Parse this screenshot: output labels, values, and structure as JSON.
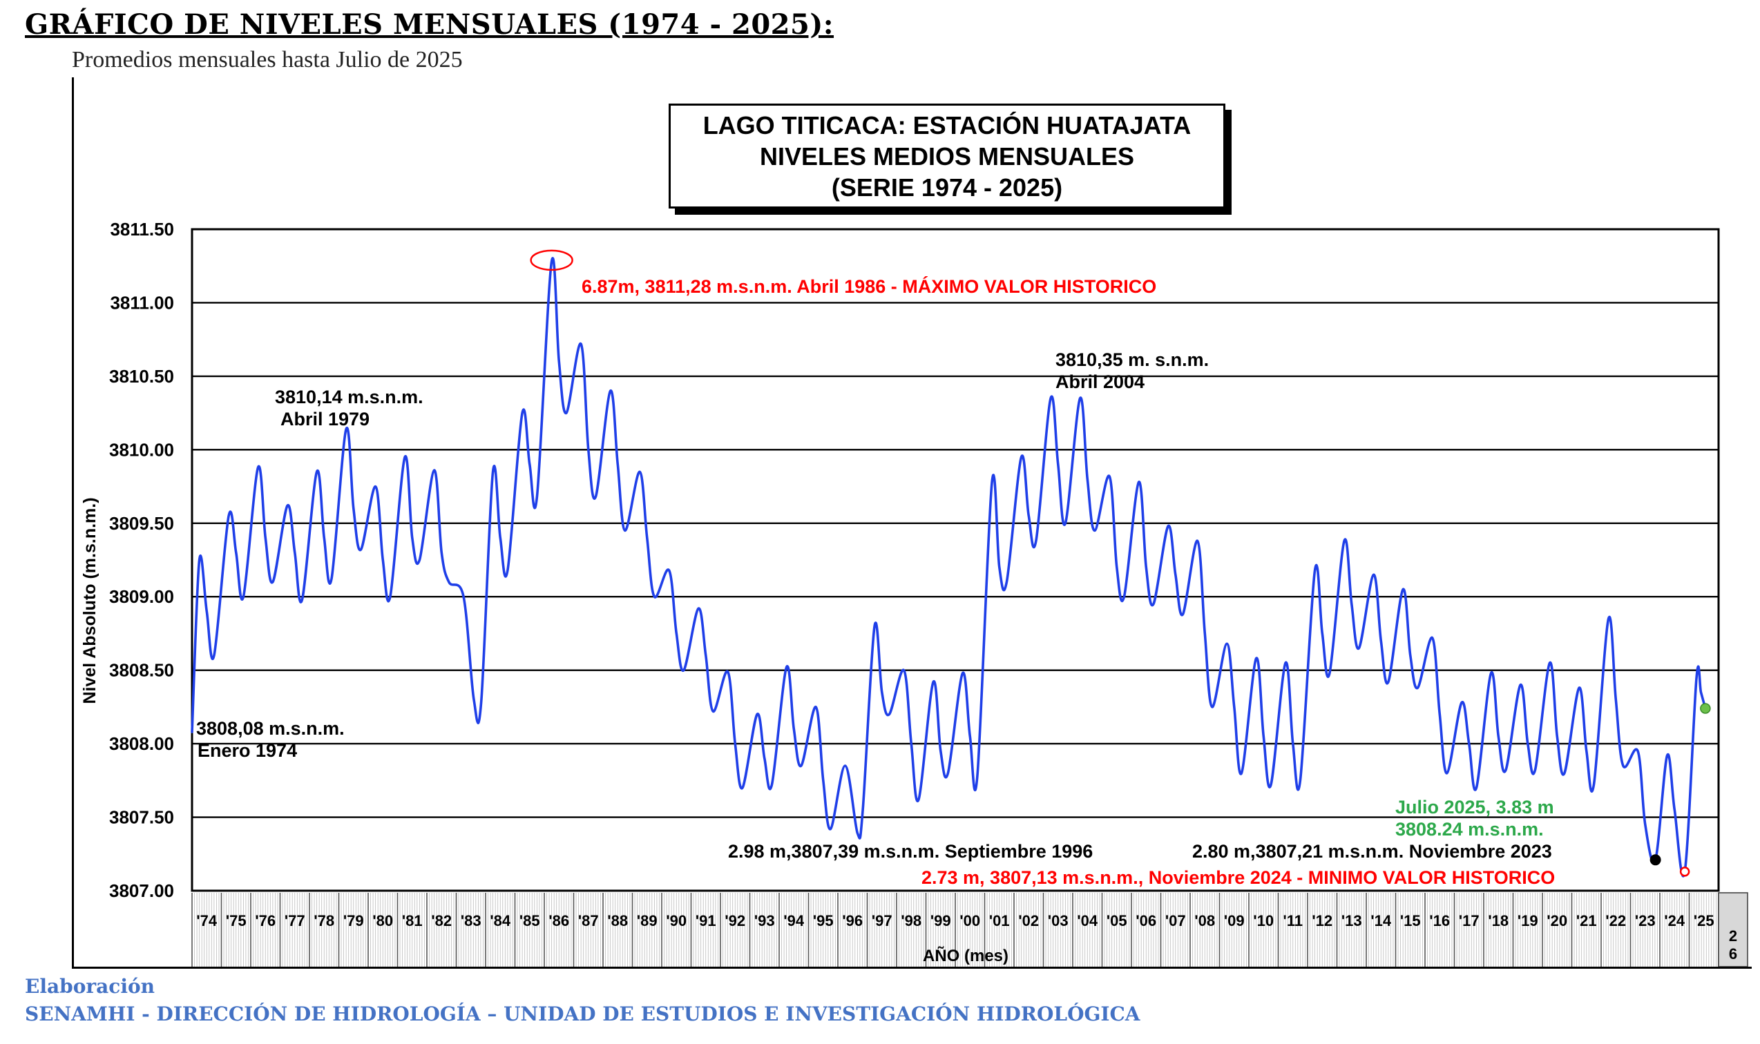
{
  "page": {
    "title": "GRÁFICO DE NIVELES MENSUALES (1974 - 2025):",
    "subtitle": "Promedios mensuales hasta Julio de 2025",
    "credit_label": "Elaboración",
    "credit_org": "SENAMHI - DIRECCIÓN DE HIDROLOGÍA – UNIDAD DE ESTUDIOS E INVESTIGACIÓN HIDROLÓGICA"
  },
  "colors": {
    "series": "#1f3fe8",
    "max_annotation": "#ff0000",
    "min_annotation": "#ff0000",
    "current_annotation": "#2ca84a",
    "current_point": "#6cc04a",
    "min_2023_point": "#000000",
    "grid": "#000000",
    "credit": "#4472c4"
  },
  "chart_data": {
    "type": "line",
    "title_lines": [
      "LAGO TITICACA: ESTACIÓN HUATAJATA",
      "NIVELES MEDIOS MENSUALES",
      "(SERIE 1974 - 2025)"
    ],
    "xlabel": "AÑO (mes)",
    "ylabel": "Nivel Absoluto (m.s.n.m.)",
    "ylim": [
      3807.0,
      3811.5
    ],
    "y_ticks": [
      "3807.00",
      "3807.50",
      "3808.00",
      "3808.50",
      "3809.00",
      "3809.50",
      "3810.00",
      "3810.50",
      "3811.00",
      "3811.50"
    ],
    "x_ticks": [
      "'74",
      "'75",
      "'76",
      "'77",
      "'78",
      "'79",
      "'80",
      "'81",
      "'82",
      "'83",
      "'84",
      "'85",
      "'86",
      "'87",
      "'88",
      "'89",
      "'90",
      "'91",
      "'92",
      "'93",
      "'94",
      "'95",
      "'96",
      "'97",
      "'98",
      "'99",
      "'00",
      "'01",
      "'02",
      "'03",
      "'04",
      "'05",
      "'06",
      "'07",
      "'08",
      "'09",
      "'10",
      "'11",
      "'12",
      "'13",
      "'14",
      "'15",
      "'16",
      "'17",
      "'18",
      "'19",
      "'20",
      "'21",
      "'22",
      "'23",
      "'24",
      "'25"
    ],
    "extra_tick": "26",
    "grid": true,
    "series_name": "Nivel medio mensual (m.s.n.m.)",
    "x_start_year": 1974.0,
    "x_end_year": 2026.0,
    "x": [
      1974.0,
      1974.25,
      1974.5,
      1974.75,
      1975.25,
      1975.5,
      1975.75,
      1976.25,
      1976.5,
      1976.75,
      1977.25,
      1977.5,
      1977.75,
      1978.25,
      1978.5,
      1978.75,
      1979.25,
      1979.5,
      1979.75,
      1980.25,
      1980.5,
      1980.75,
      1981.25,
      1981.5,
      1981.75,
      1982.25,
      1982.5,
      1982.75,
      1983.25,
      1983.6,
      1983.85,
      1984.25,
      1984.5,
      1984.75,
      1985.25,
      1985.5,
      1985.75,
      1986.25,
      1986.5,
      1986.75,
      1987.25,
      1987.5,
      1987.75,
      1988.25,
      1988.5,
      1988.75,
      1989.25,
      1989.5,
      1989.75,
      1990.25,
      1990.5,
      1990.75,
      1991.25,
      1991.5,
      1991.75,
      1992.25,
      1992.5,
      1992.75,
      1993.25,
      1993.5,
      1993.75,
      1994.25,
      1994.5,
      1994.75,
      1995.25,
      1995.5,
      1995.75,
      1996.25,
      1996.67,
      1996.85,
      1997.25,
      1997.5,
      1997.75,
      1998.25,
      1998.5,
      1998.75,
      1999.25,
      1999.5,
      1999.75,
      2000.25,
      2000.5,
      2000.75,
      2001.25,
      2001.5,
      2001.75,
      2002.25,
      2002.5,
      2002.75,
      2003.25,
      2003.5,
      2003.75,
      2004.25,
      2004.5,
      2004.75,
      2005.25,
      2005.5,
      2005.75,
      2006.25,
      2006.5,
      2006.75,
      2007.25,
      2007.5,
      2007.75,
      2008.25,
      2008.5,
      2008.75,
      2009.25,
      2009.5,
      2009.75,
      2010.25,
      2010.5,
      2010.75,
      2011.25,
      2011.5,
      2011.75,
      2012.25,
      2012.5,
      2012.75,
      2013.25,
      2013.5,
      2013.75,
      2014.25,
      2014.5,
      2014.75,
      2015.25,
      2015.5,
      2015.75,
      2016.25,
      2016.5,
      2016.75,
      2017.25,
      2017.5,
      2017.75,
      2018.25,
      2018.5,
      2018.75,
      2019.25,
      2019.5,
      2019.75,
      2020.25,
      2020.5,
      2020.75,
      2021.25,
      2021.5,
      2021.75,
      2022.25,
      2022.5,
      2022.75,
      2023.25,
      2023.5,
      2023.85,
      2024.25,
      2024.5,
      2024.85,
      2025.25,
      2025.4,
      2025.55
    ],
    "values": [
      3808.08,
      3809.25,
      3808.9,
      3808.6,
      3809.55,
      3809.3,
      3809.0,
      3809.88,
      3809.4,
      3809.1,
      3809.62,
      3809.3,
      3808.98,
      3809.85,
      3809.4,
      3809.12,
      3810.14,
      3809.6,
      3809.32,
      3809.75,
      3809.25,
      3809.0,
      3809.95,
      3809.4,
      3809.25,
      3809.86,
      3809.3,
      3809.1,
      3809.0,
      3808.3,
      3808.28,
      3809.85,
      3809.4,
      3809.18,
      3810.25,
      3809.9,
      3809.68,
      3811.28,
      3810.6,
      3810.25,
      3810.72,
      3810.0,
      3809.68,
      3810.4,
      3809.9,
      3809.45,
      3809.85,
      3809.4,
      3809.0,
      3809.18,
      3808.75,
      3808.5,
      3808.92,
      3808.6,
      3808.22,
      3808.49,
      3808.0,
      3807.7,
      3808.2,
      3807.9,
      3807.72,
      3808.52,
      3808.1,
      3807.85,
      3808.25,
      3807.75,
      3807.42,
      3807.85,
      3807.39,
      3807.55,
      3808.8,
      3808.35,
      3808.2,
      3808.5,
      3808.0,
      3807.62,
      3808.42,
      3807.95,
      3807.8,
      3808.48,
      3808.05,
      3807.78,
      3809.78,
      3809.2,
      3809.1,
      3809.95,
      3809.55,
      3809.38,
      3810.35,
      3809.9,
      3809.5,
      3810.35,
      3809.8,
      3809.45,
      3809.82,
      3809.2,
      3809.0,
      3809.78,
      3809.2,
      3808.95,
      3809.48,
      3809.15,
      3808.88,
      3809.38,
      3808.75,
      3808.25,
      3808.68,
      3808.25,
      3807.8,
      3808.58,
      3808.05,
      3807.72,
      3808.55,
      3808.0,
      3807.75,
      3809.18,
      3808.75,
      3808.48,
      3809.38,
      3808.95,
      3808.65,
      3809.15,
      3808.7,
      3808.42,
      3809.05,
      3808.6,
      3808.38,
      3808.72,
      3808.2,
      3807.8,
      3808.28,
      3808.0,
      3807.7,
      3808.48,
      3808.05,
      3807.82,
      3808.4,
      3808.0,
      3807.82,
      3808.55,
      3808.05,
      3807.8,
      3808.38,
      3807.95,
      3807.72,
      3808.85,
      3808.3,
      3807.85,
      3807.95,
      3807.45,
      3807.21,
      3807.92,
      3807.55,
      3807.13,
      3808.45,
      3808.35,
      3808.24
    ],
    "markers": {
      "max": {
        "x": 1986.25,
        "y": 3811.28
      },
      "min_2023": {
        "x": 2023.85,
        "y": 3807.21
      },
      "min_2024": {
        "x": 2024.85,
        "y": 3807.13
      },
      "current": {
        "x": 2025.55,
        "y": 3808.24
      }
    },
    "annotations": {
      "max": "6.87m, 3811,28 m.s.n.m. Abril 1986 - MÁXIMO VALOR HISTORICO",
      "peak_1979": [
        "3810,14 m.s.n.m.",
        "Abril 1979"
      ],
      "peak_2004": [
        "3810,35 m. s.n.m.",
        "Abril 2004"
      ],
      "start_1974": [
        "3808,08 m.s.n.m.",
        "Enero 1974"
      ],
      "low_1996": "2.98 m,3807,39 m.s.n.m. Septiembre 1996",
      "low_2023": "2.80 m,3807,21 m.s.n.m. Noviembre 2023",
      "min_2024": "2.73 m, 3807,13 m.s.n.m., Noviembre 2024 - MINIMO VALOR HISTORICO",
      "current": [
        "Julio 2025, 3.83 m",
        "3808.24 m.s.n.m."
      ]
    }
  }
}
